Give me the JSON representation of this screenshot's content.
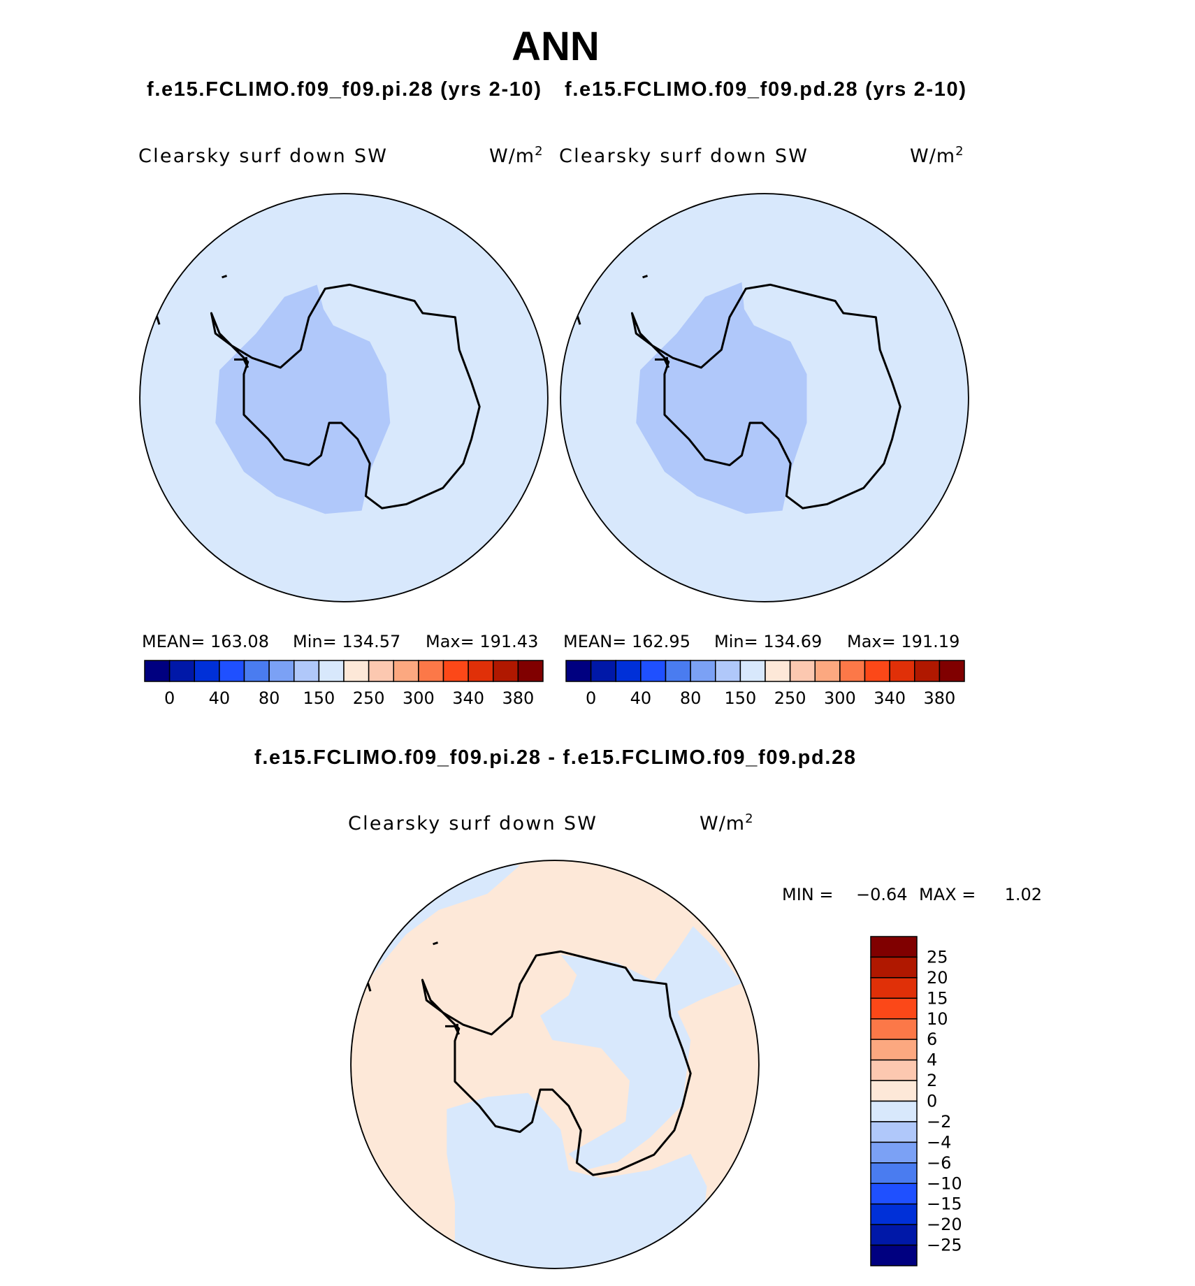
{
  "title": "ANN",
  "panels": [
    {
      "case": "f.e15.FCLIMO.f09_f09.pi.28 (yrs 2-10)",
      "field": "Clearsky surf down SW",
      "units": "W/m",
      "units_exponent": "2",
      "mean": "MEAN= 163.08",
      "min": "Min= 134.57",
      "max": "Max= 191.43"
    },
    {
      "case": "f.e15.FCLIMO.f09_f09.pd.28 (yrs 2-10)",
      "field": "Clearsky surf down SW",
      "units": "W/m",
      "units_exponent": "2",
      "mean": "MEAN= 162.95",
      "min": "Min= 134.69",
      "max": "Max= 191.19"
    }
  ],
  "colorbar_labels": [
    "0",
    "40",
    "80",
    "150",
    "250",
    "300",
    "340",
    "380"
  ],
  "colorbar_colors": [
    "#000080",
    "#0018a8",
    "#0030d8",
    "#1f50ff",
    "#4a7cf0",
    "#7ba1f5",
    "#b0c8fa",
    "#d8e8fc",
    "#fde8d8",
    "#fcc8b0",
    "#fca880",
    "#fc7848",
    "#fc4818",
    "#e03008",
    "#b01800",
    "#800000"
  ],
  "difference": {
    "title": "f.e15.FCLIMO.f09_f09.pi.28 - f.e15.FCLIMO.f09_f09.pd.28",
    "field": "Clearsky surf down SW",
    "units": "W/m",
    "units_exponent": "2",
    "min_label": "MIN =",
    "min": "−0.64",
    "max_label": "MAX =",
    "max": "1.02",
    "colorbar_labels": [
      "25",
      "20",
      "15",
      "10",
      "6",
      "4",
      "2",
      "0",
      "−2",
      "−4",
      "−6",
      "−10",
      "−15",
      "−20",
      "−25"
    ]
  }
}
